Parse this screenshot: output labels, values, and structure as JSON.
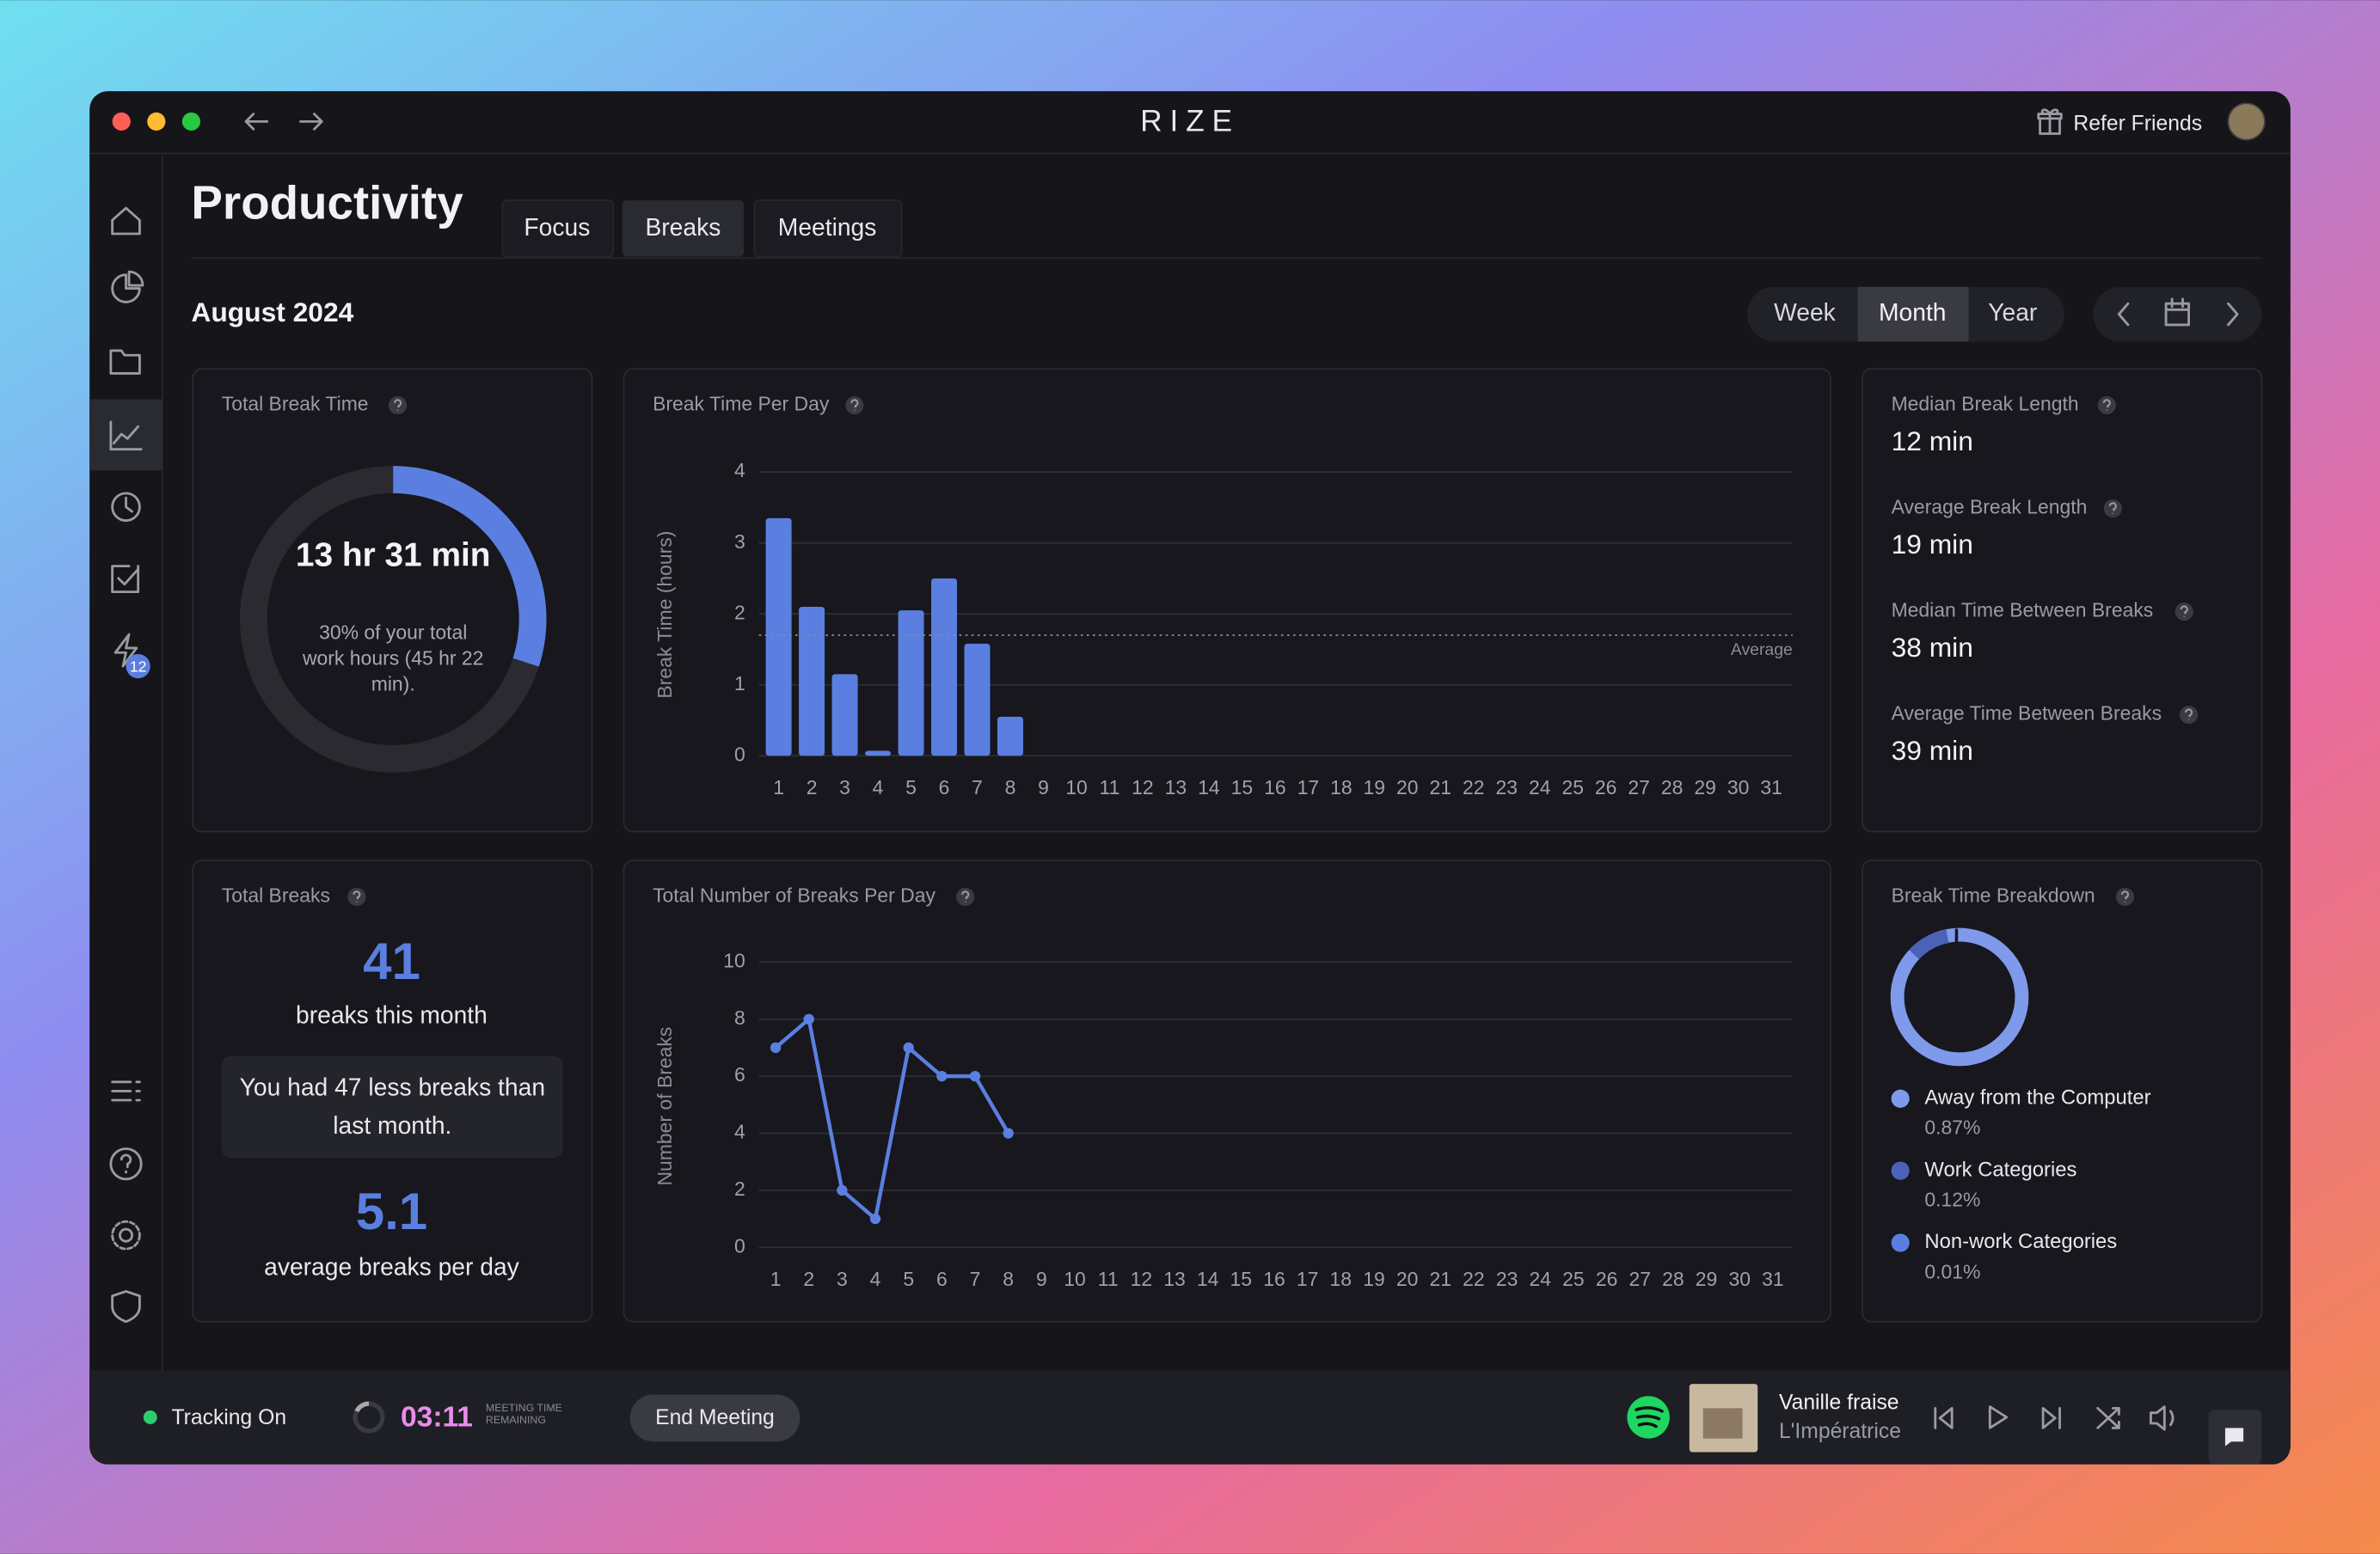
{
  "window": {
    "brand": "RIZE",
    "refer": "Refer Friends"
  },
  "sidebar": {
    "badge": 12
  },
  "header": {
    "title": "Productivity",
    "tabs": [
      "Focus",
      "Breaks",
      "Meetings"
    ],
    "period": "August 2024",
    "ranges": [
      "Week",
      "Month",
      "Year"
    ]
  },
  "total_break_time": {
    "label": "Total Break Time",
    "value": "13 hr 31 min",
    "note": "30% of your total work hours (45 hr 22 min).",
    "share": 30
  },
  "stats": [
    {
      "label": "Median Break Length",
      "value": "12 min"
    },
    {
      "label": "Average Break Length",
      "value": "19 min"
    },
    {
      "label": "Median Time Between Breaks",
      "value": "38 min"
    },
    {
      "label": "Average Time Between Breaks",
      "value": "39 min"
    }
  ],
  "total_breaks": {
    "label": "Total Breaks",
    "count": 41,
    "count_caption": "breaks this month",
    "comparison": "You had 47 less breaks than last month.",
    "average": 5.1,
    "average_caption": "average breaks per day"
  },
  "breakdown": {
    "title": "Break Time Breakdown",
    "items": [
      {
        "name": "Away from the Computer",
        "value": "0.87%",
        "color": "#7f9aea"
      },
      {
        "name": "Work Categories",
        "value": "0.12%",
        "color": "#4a63b8"
      },
      {
        "name": "Non-work Categories",
        "value": "0.01%",
        "color": "#5b7fe0"
      }
    ]
  },
  "footer": {
    "tracking": "Tracking On",
    "timer": "03:11",
    "timer_caption": "MEETING TIME REMAINING",
    "end": "End Meeting",
    "track": "Vanille fraise",
    "artist": "L'Impératrice"
  },
  "chart_data": [
    {
      "type": "bar",
      "title": "Break Time Per Day",
      "y_label": "Break Time (hours)",
      "color": "#5b7fe0",
      "categories": [
        "1",
        "2",
        "3",
        "4",
        "5",
        "6",
        "7",
        "8",
        "9",
        "10",
        "11",
        "12",
        "13",
        "14",
        "15",
        "16",
        "17",
        "18",
        "19",
        "20",
        "21",
        "22",
        "23",
        "24",
        "25",
        "26",
        "27",
        "28",
        "29",
        "30",
        "31"
      ],
      "values": [
        3.35,
        2.1,
        1.15,
        0.07,
        2.05,
        2.5,
        1.58,
        0.55,
        null,
        null,
        null,
        null,
        null,
        null,
        null,
        null,
        null,
        null,
        null,
        null,
        null,
        null,
        null,
        null,
        null,
        null,
        null,
        null,
        null,
        null,
        null
      ],
      "ylim": [
        0,
        4
      ],
      "yticks": [
        0,
        1,
        2,
        3,
        4
      ],
      "grid": true,
      "average": 1.7,
      "average_label": "Average"
    },
    {
      "type": "line",
      "title": "Total Number of Breaks Per Day",
      "y_label": "Number of Breaks",
      "color": "#5b7fe0",
      "categories": [
        "1",
        "2",
        "3",
        "4",
        "5",
        "6",
        "7",
        "8",
        "9",
        "10",
        "11",
        "12",
        "13",
        "14",
        "15",
        "16",
        "17",
        "18",
        "19",
        "20",
        "21",
        "22",
        "23",
        "24",
        "25",
        "26",
        "27",
        "28",
        "29",
        "30",
        "31"
      ],
      "values": [
        7,
        8,
        2,
        1,
        7,
        6,
        6,
        4,
        null,
        null,
        null,
        null,
        null,
        null,
        null,
        null,
        null,
        null,
        null,
        null,
        null,
        null,
        null,
        null,
        null,
        null,
        null,
        null,
        null,
        null,
        null
      ],
      "ylim": [
        0,
        10
      ],
      "yticks": [
        0,
        2,
        4,
        6,
        8,
        10
      ],
      "grid": true
    }
  ]
}
